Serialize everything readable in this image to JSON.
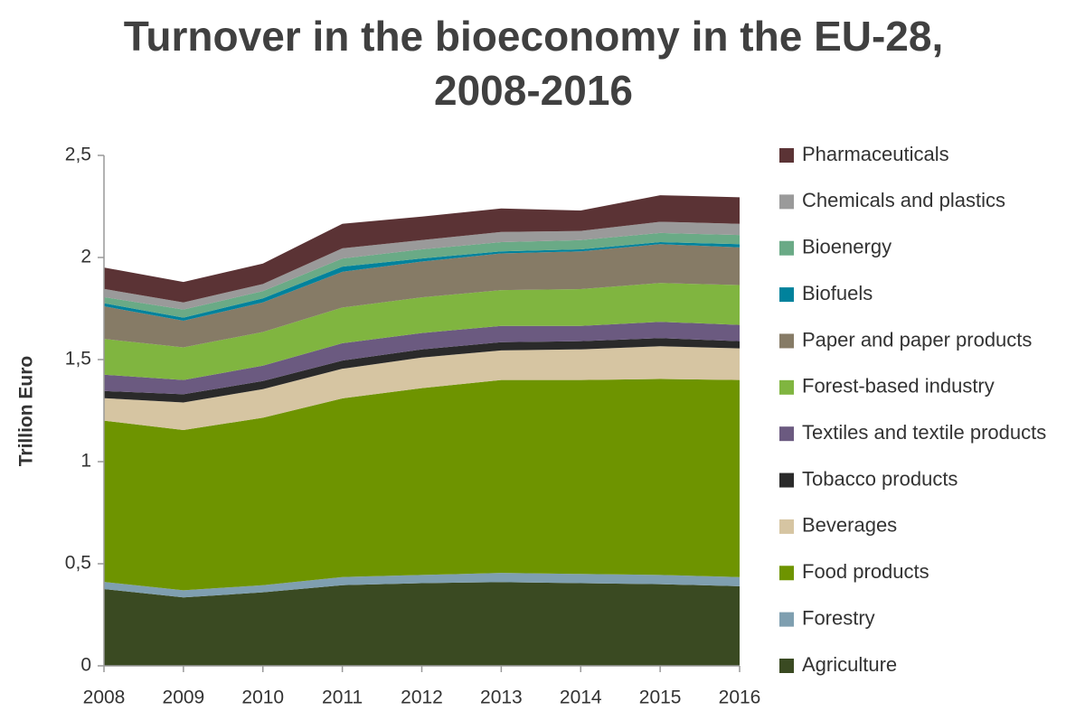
{
  "chart_data": {
    "type": "stacked_area",
    "title": [
      "Turnover in the bioeconomy in the EU-28,",
      "2008-2016"
    ],
    "y_label": "Trillion Euro",
    "categories": [
      "2008",
      "2009",
      "2010",
      "2011",
      "2012",
      "2013",
      "2014",
      "2015",
      "2016"
    ],
    "ylim": [
      0,
      2.5
    ],
    "yticks": [
      0,
      {
        "value": 0.5,
        "label": "0,5"
      },
      1,
      {
        "value": 1.5,
        "label": "1,5"
      },
      2,
      {
        "value": 2.5,
        "label": "2,5"
      }
    ],
    "grid": false,
    "legend": "right",
    "series": [
      {
        "name": "Agriculture",
        "color": "#3a4a22",
        "values": [
          0.376,
          0.335,
          0.36,
          0.395,
          0.405,
          0.41,
          0.405,
          0.4,
          0.39
        ]
      },
      {
        "name": "Forestry",
        "color": "#7f9fb0",
        "values": [
          0.035,
          0.035,
          0.035,
          0.04,
          0.04,
          0.045,
          0.045,
          0.045,
          0.045
        ]
      },
      {
        "name": "Food products",
        "color": "#6e9400",
        "values": [
          0.79,
          0.785,
          0.82,
          0.875,
          0.915,
          0.945,
          0.95,
          0.96,
          0.965
        ]
      },
      {
        "name": "Beverages",
        "color": "#d6c5a2",
        "values": [
          0.11,
          0.135,
          0.14,
          0.145,
          0.15,
          0.145,
          0.15,
          0.16,
          0.155
        ]
      },
      {
        "name": "Tobacco products",
        "color": "#2a2a2a",
        "values": [
          0.035,
          0.04,
          0.04,
          0.04,
          0.04,
          0.04,
          0.04,
          0.04,
          0.035
        ]
      },
      {
        "name": "Textiles and textile products",
        "color": "#6b5a80",
        "values": [
          0.08,
          0.07,
          0.075,
          0.085,
          0.08,
          0.08,
          0.075,
          0.08,
          0.08
        ]
      },
      {
        "name": "Forest-based industry",
        "color": "#80b540",
        "values": [
          0.175,
          0.16,
          0.165,
          0.175,
          0.175,
          0.175,
          0.18,
          0.19,
          0.195
        ]
      },
      {
        "name": "Paper and paper products",
        "color": "#867b66",
        "values": [
          0.16,
          0.13,
          0.145,
          0.175,
          0.175,
          0.18,
          0.185,
          0.19,
          0.185
        ]
      },
      {
        "name": "Biofuels",
        "color": "#00829c",
        "values": [
          0.015,
          0.015,
          0.02,
          0.025,
          0.015,
          0.01,
          0.01,
          0.01,
          0.015
        ]
      },
      {
        "name": "Bioenergy",
        "color": "#6aaa86",
        "values": [
          0.03,
          0.04,
          0.035,
          0.04,
          0.045,
          0.045,
          0.045,
          0.045,
          0.045
        ]
      },
      {
        "name": "Chemicals and plastics",
        "color": "#9a9a9a",
        "values": [
          0.04,
          0.035,
          0.035,
          0.05,
          0.045,
          0.05,
          0.045,
          0.055,
          0.055
        ]
      },
      {
        "name": "Pharmaceuticals",
        "color": "#5b3335",
        "values": [
          0.105,
          0.1,
          0.1,
          0.12,
          0.115,
          0.115,
          0.1,
          0.13,
          0.13
        ]
      }
    ]
  }
}
